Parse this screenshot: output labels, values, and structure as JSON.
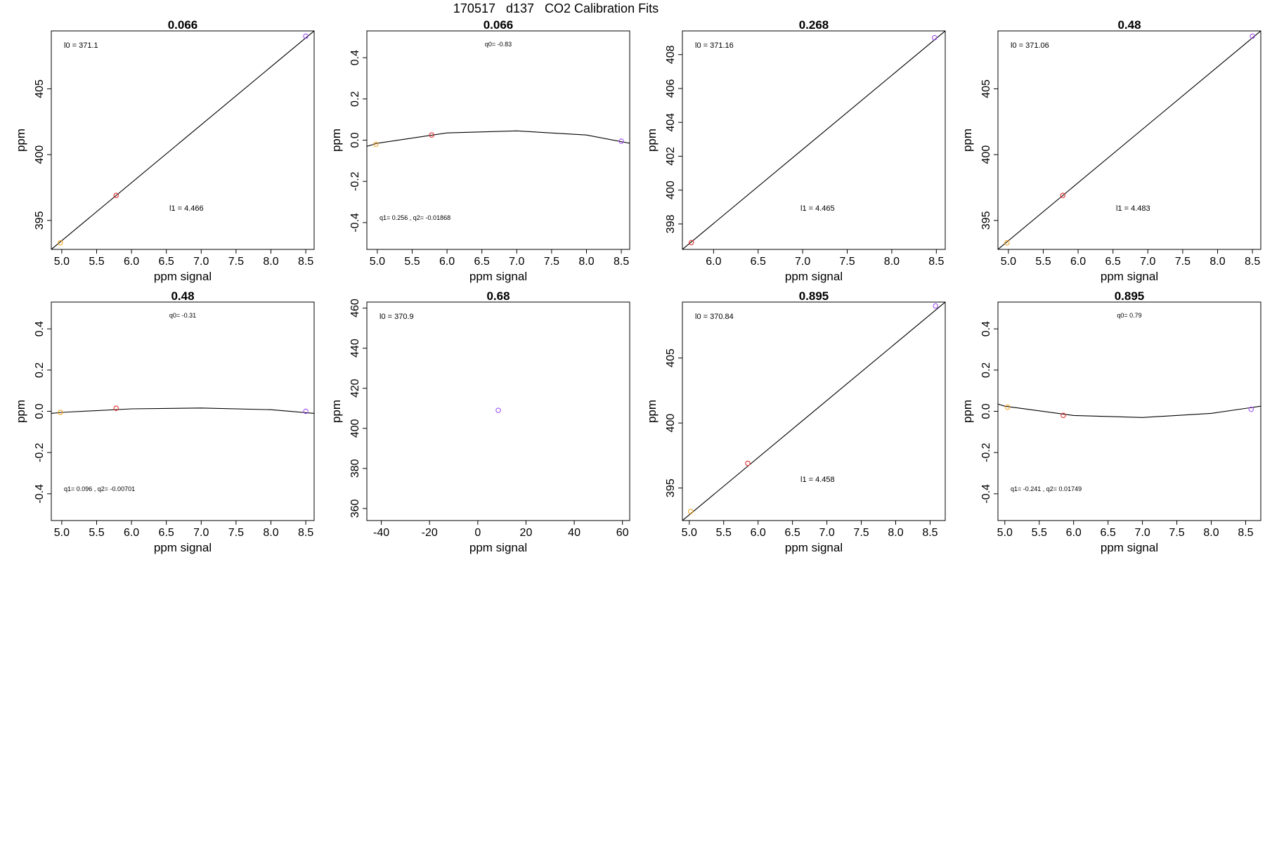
{
  "suptitle": "170517   d137   CO2 Calibration Fits",
  "colors": {
    "point_orange": "#f5a623",
    "point_red": "#e03030",
    "point_purple": "#a050f0",
    "line": "#000000"
  },
  "chart_data": [
    {
      "type": "scatter",
      "title": "0.066",
      "xlabel": "ppm signal",
      "ylabel": "ppm",
      "xlim": [
        4.85,
        8.62
      ],
      "ylim": [
        392.8,
        409.4
      ],
      "xticks": [
        5.0,
        5.5,
        6.0,
        6.5,
        7.0,
        7.5,
        8.0,
        8.5
      ],
      "xtick_labels": [
        "5.0",
        "5.5",
        "6.0",
        "6.5",
        "7.0",
        "7.5",
        "8.0",
        "8.5"
      ],
      "yticks": [
        395,
        400,
        405
      ],
      "ytick_labels": [
        "395",
        "400",
        "405"
      ],
      "points": [
        {
          "x": 4.98,
          "y": 393.3,
          "color": "point_orange"
        },
        {
          "x": 5.78,
          "y": 396.9,
          "color": "point_red"
        },
        {
          "x": 8.5,
          "y": 409.0,
          "color": "point_purple"
        }
      ],
      "fit": {
        "kind": "linear",
        "x": [
          4.85,
          8.62
        ],
        "y": [
          392.8,
          409.4
        ]
      },
      "annotations": [
        {
          "text": "l0 =  371.1",
          "pos": "top-left"
        },
        {
          "text": "l1 =  4.466",
          "pos": "mid-right"
        }
      ]
    },
    {
      "type": "scatter",
      "title": "0.066",
      "xlabel": "ppm signal",
      "ylabel": "ppm",
      "xlim": [
        4.85,
        8.62
      ],
      "ylim": [
        -0.53,
        0.53
      ],
      "xticks": [
        5.0,
        5.5,
        6.0,
        6.5,
        7.0,
        7.5,
        8.0,
        8.5
      ],
      "xtick_labels": [
        "5.0",
        "5.5",
        "6.0",
        "6.5",
        "7.0",
        "7.5",
        "8.0",
        "8.5"
      ],
      "yticks": [
        -0.4,
        -0.2,
        0.0,
        0.2,
        0.4
      ],
      "ytick_labels": [
        "-0.4",
        "-0.2",
        "0.0",
        "0.2",
        "0.4"
      ],
      "points": [
        {
          "x": 4.98,
          "y": -0.02,
          "color": "point_orange"
        },
        {
          "x": 5.78,
          "y": 0.025,
          "color": "point_red"
        },
        {
          "x": 8.5,
          "y": -0.005,
          "color": "point_purple"
        }
      ],
      "fit": {
        "kind": "curve",
        "x": [
          4.85,
          5.0,
          6.0,
          7.0,
          8.0,
          8.62
        ],
        "y": [
          -0.03,
          -0.015,
          0.035,
          0.045,
          0.025,
          -0.015
        ]
      },
      "annotations": [
        {
          "text": "q0= -0.83",
          "pos": "top-center"
        },
        {
          "text": "q1= 0.256 , q2= -0.01868",
          "pos": "bottom-left"
        }
      ]
    },
    {
      "type": "scatter",
      "title": "0.268",
      "xlabel": "ppm signal",
      "ylabel": "ppm",
      "xlim": [
        5.65,
        8.6
      ],
      "ylim": [
        396.5,
        409.4
      ],
      "xticks": [
        6.0,
        6.5,
        7.0,
        7.5,
        8.0,
        8.5
      ],
      "xtick_labels": [
        "6.0",
        "6.5",
        "7.0",
        "7.5",
        "8.0",
        "8.5"
      ],
      "yticks": [
        398,
        400,
        402,
        404,
        406,
        408
      ],
      "ytick_labels": [
        "398",
        "400",
        "402",
        "404",
        "406",
        "408"
      ],
      "points": [
        {
          "x": 5.75,
          "y": 396.9,
          "color": "point_red"
        },
        {
          "x": 8.48,
          "y": 409.0,
          "color": "point_purple"
        }
      ],
      "fit": {
        "kind": "linear",
        "x": [
          5.65,
          8.6
        ],
        "y": [
          396.5,
          409.4
        ]
      },
      "annotations": [
        {
          "text": "l0 =  371.16",
          "pos": "top-left"
        },
        {
          "text": "l1 =  4.465",
          "pos": "mid-right"
        }
      ]
    },
    {
      "type": "scatter",
      "title": "0.48",
      "xlabel": "ppm signal",
      "ylabel": "ppm",
      "xlim": [
        4.85,
        8.62
      ],
      "ylim": [
        392.8,
        409.4
      ],
      "xticks": [
        5.0,
        5.5,
        6.0,
        6.5,
        7.0,
        7.5,
        8.0,
        8.5
      ],
      "xtick_labels": [
        "5.0",
        "5.5",
        "6.0",
        "6.5",
        "7.0",
        "7.5",
        "8.0",
        "8.5"
      ],
      "yticks": [
        395,
        400,
        405
      ],
      "ytick_labels": [
        "395",
        "400",
        "405"
      ],
      "points": [
        {
          "x": 4.98,
          "y": 393.3,
          "color": "point_orange"
        },
        {
          "x": 5.78,
          "y": 396.9,
          "color": "point_red"
        },
        {
          "x": 8.5,
          "y": 409.0,
          "color": "point_purple"
        }
      ],
      "fit": {
        "kind": "linear",
        "x": [
          4.85,
          8.62
        ],
        "y": [
          392.8,
          409.4
        ]
      },
      "annotations": [
        {
          "text": "l0 =  371.06",
          "pos": "top-left"
        },
        {
          "text": "l1 =  4.483",
          "pos": "mid-right"
        }
      ]
    },
    {
      "type": "scatter",
      "title": "0.48",
      "xlabel": "ppm signal",
      "ylabel": "ppm",
      "xlim": [
        4.85,
        8.62
      ],
      "ylim": [
        -0.53,
        0.53
      ],
      "xticks": [
        5.0,
        5.5,
        6.0,
        6.5,
        7.0,
        7.5,
        8.0,
        8.5
      ],
      "xtick_labels": [
        "5.0",
        "5.5",
        "6.0",
        "6.5",
        "7.0",
        "7.5",
        "8.0",
        "8.5"
      ],
      "yticks": [
        -0.4,
        -0.2,
        0.0,
        0.2,
        0.4
      ],
      "ytick_labels": [
        "-0.4",
        "-0.2",
        "0.0",
        "0.2",
        "0.4"
      ],
      "points": [
        {
          "x": 4.98,
          "y": -0.005,
          "color": "point_orange"
        },
        {
          "x": 5.78,
          "y": 0.015,
          "color": "point_red"
        },
        {
          "x": 8.5,
          "y": 0.0,
          "color": "point_purple"
        }
      ],
      "fit": {
        "kind": "curve",
        "x": [
          4.85,
          5.0,
          6.0,
          7.0,
          8.0,
          8.62
        ],
        "y": [
          -0.01,
          -0.005,
          0.012,
          0.016,
          0.008,
          -0.01
        ]
      },
      "annotations": [
        {
          "text": "q0= -0.31",
          "pos": "top-center"
        },
        {
          "text": "q1= 0.096 , q2= -0.00701",
          "pos": "bottom-left"
        }
      ]
    },
    {
      "type": "scatter",
      "title": "0.68",
      "xlabel": "ppm signal",
      "ylabel": "ppm",
      "xlim": [
        -46,
        63
      ],
      "ylim": [
        354,
        463
      ],
      "xticks": [
        -40,
        -20,
        0,
        20,
        40,
        60
      ],
      "xtick_labels": [
        "-40",
        "-20",
        "0",
        "20",
        "40",
        "60"
      ],
      "yticks": [
        360,
        380,
        400,
        420,
        440,
        460
      ],
      "ytick_labels": [
        "360",
        "380",
        "400",
        "420",
        "440",
        "460"
      ],
      "points": [
        {
          "x": 8.5,
          "y": 409.0,
          "color": "point_purple"
        }
      ],
      "fit": null,
      "annotations": [
        {
          "text": "l0 =  370.9",
          "pos": "top-left"
        }
      ]
    },
    {
      "type": "scatter",
      "title": "0.895",
      "xlabel": "ppm signal",
      "ylabel": "ppm",
      "xlim": [
        4.9,
        8.72
      ],
      "ylim": [
        392.5,
        409.3
      ],
      "xticks": [
        5.0,
        5.5,
        6.0,
        6.5,
        7.0,
        7.5,
        8.0,
        8.5
      ],
      "xtick_labels": [
        "5.0",
        "5.5",
        "6.0",
        "6.5",
        "7.0",
        "7.5",
        "8.0",
        "8.5"
      ],
      "yticks": [
        395,
        400,
        405
      ],
      "ytick_labels": [
        "395",
        "400",
        "405"
      ],
      "points": [
        {
          "x": 5.02,
          "y": 393.2,
          "color": "point_orange"
        },
        {
          "x": 5.85,
          "y": 396.9,
          "color": "point_red"
        },
        {
          "x": 8.58,
          "y": 409.0,
          "color": "point_purple"
        }
      ],
      "fit": {
        "kind": "linear",
        "x": [
          4.9,
          8.72
        ],
        "y": [
          392.5,
          409.3
        ]
      },
      "annotations": [
        {
          "text": "l0 =  370.84",
          "pos": "top-left"
        },
        {
          "text": "l1 =  4.458",
          "pos": "mid-right"
        }
      ]
    },
    {
      "type": "scatter",
      "title": "0.895",
      "xlabel": "ppm signal",
      "ylabel": "ppm",
      "xlim": [
        4.9,
        8.72
      ],
      "ylim": [
        -0.53,
        0.53
      ],
      "xticks": [
        5.0,
        5.5,
        6.0,
        6.5,
        7.0,
        7.5,
        8.0,
        8.5
      ],
      "xtick_labels": [
        "5.0",
        "5.5",
        "6.0",
        "6.5",
        "7.0",
        "7.5",
        "8.0",
        "8.5"
      ],
      "yticks": [
        -0.4,
        -0.2,
        0.0,
        0.2,
        0.4
      ],
      "ytick_labels": [
        "-0.4",
        "-0.2",
        "0.0",
        "0.2",
        "0.4"
      ],
      "points": [
        {
          "x": 5.04,
          "y": 0.02,
          "color": "point_orange"
        },
        {
          "x": 5.85,
          "y": -0.02,
          "color": "point_red"
        },
        {
          "x": 8.58,
          "y": 0.01,
          "color": "point_purple"
        }
      ],
      "fit": {
        "kind": "curve",
        "x": [
          4.9,
          5.0,
          6.0,
          7.0,
          8.0,
          8.72
        ],
        "y": [
          0.035,
          0.025,
          -0.02,
          -0.03,
          -0.01,
          0.025
        ]
      },
      "annotations": [
        {
          "text": "q0= 0.79",
          "pos": "top-center"
        },
        {
          "text": "q1= -0.241 , q2= 0.01749",
          "pos": "bottom-left"
        }
      ]
    }
  ]
}
